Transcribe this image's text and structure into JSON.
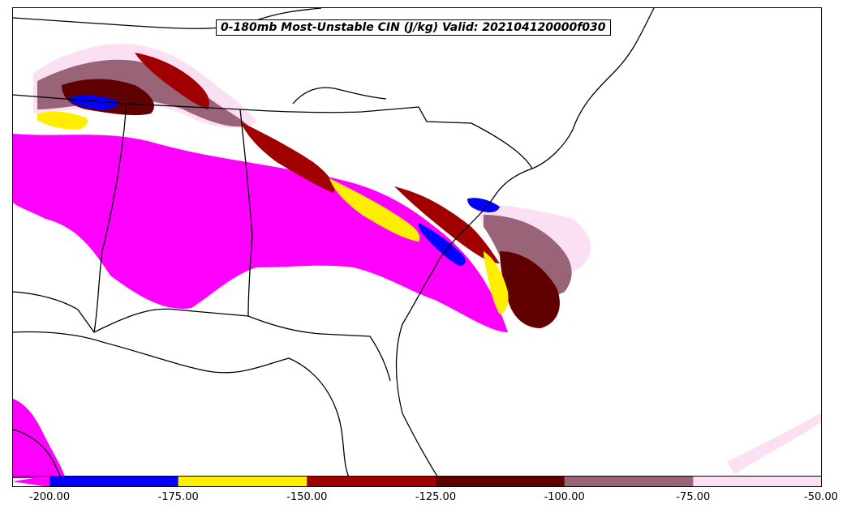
{
  "title": "0-180mb Most-Unstable CIN (J/kg) Valid: 202104120000f030",
  "colors": {
    "below_min": "#ff00ff",
    "c1": "#0000ff",
    "c2": "#ffee00",
    "c3": "#a00000",
    "c4": "#600000",
    "c5": "#9a6478",
    "c6": "#fbe0f4",
    "background": "#ffffff",
    "borders": "#000000"
  },
  "colorbar": {
    "extend": "min",
    "bins": [
      {
        "from": -200,
        "to": -175,
        "color": "#0000ff"
      },
      {
        "from": -175,
        "to": -150,
        "color": "#ffee00"
      },
      {
        "from": -150,
        "to": -125,
        "color": "#a00000"
      },
      {
        "from": -125,
        "to": -100,
        "color": "#600000"
      },
      {
        "from": -100,
        "to": -75,
        "color": "#9a6478"
      },
      {
        "from": -75,
        "to": -50,
        "color": "#fbe0f4"
      }
    ],
    "tick_labels": [
      "-200.00",
      "-175.00",
      "-150.00",
      "-125.00",
      "-100.00",
      "-75.00",
      "-50.00"
    ]
  }
}
